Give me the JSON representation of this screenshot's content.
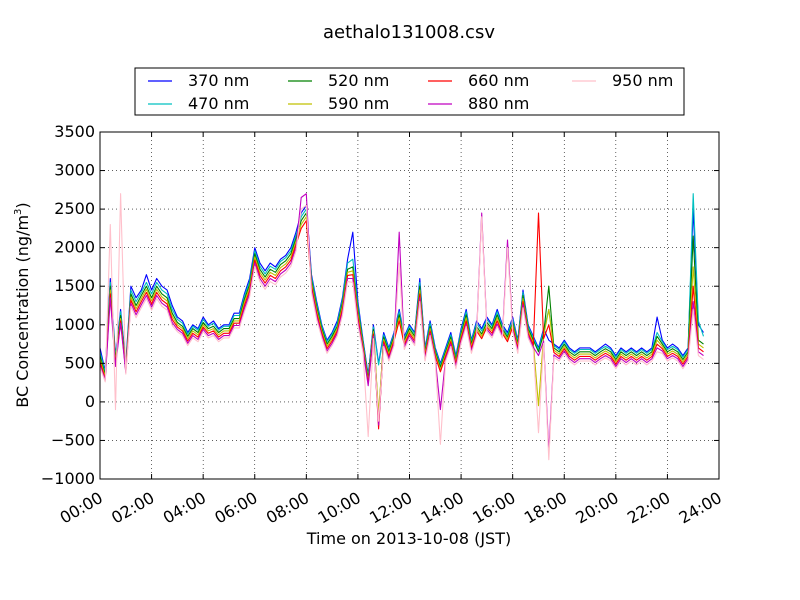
{
  "chart_data": {
    "type": "line",
    "title": "aethalo131008.csv",
    "xlabel": "Time on 2013-10-08 (JST)",
    "ylabel": "BC Concentration (ng/m",
    "ylabel_superscript": "3",
    "ylabel_suffix": ")",
    "xlim_hours": [
      0,
      24
    ],
    "ylim": [
      -1000,
      3500
    ],
    "xticks": [
      {
        "hour": 0,
        "label": "00:00"
      },
      {
        "hour": 2,
        "label": "02:00"
      },
      {
        "hour": 4,
        "label": "04:00"
      },
      {
        "hour": 6,
        "label": "06:00"
      },
      {
        "hour": 8,
        "label": "08:00"
      },
      {
        "hour": 10,
        "label": "10:00"
      },
      {
        "hour": 12,
        "label": "12:00"
      },
      {
        "hour": 14,
        "label": "14:00"
      },
      {
        "hour": 16,
        "label": "16:00"
      },
      {
        "hour": 18,
        "label": "18:00"
      },
      {
        "hour": 20,
        "label": "20:00"
      },
      {
        "hour": 22,
        "label": "22:00"
      },
      {
        "hour": 24,
        "label": "24:00"
      }
    ],
    "yticks": [
      {
        "value": -1000,
        "label": "−1000"
      },
      {
        "value": -500,
        "label": "−500"
      },
      {
        "value": 0,
        "label": "0"
      },
      {
        "value": 500,
        "label": "500"
      },
      {
        "value": 1000,
        "label": "1000"
      },
      {
        "value": 1500,
        "label": "1500"
      },
      {
        "value": 2000,
        "label": "2000"
      },
      {
        "value": 2500,
        "label": "2500"
      },
      {
        "value": 3000,
        "label": "3000"
      },
      {
        "value": 3500,
        "label": "3500"
      }
    ],
    "grid": true,
    "legend_position": "top",
    "x_hours": [
      0,
      0.2,
      0.4,
      0.6,
      0.8,
      1.0,
      1.2,
      1.4,
      1.6,
      1.8,
      2.0,
      2.2,
      2.4,
      2.6,
      2.8,
      3.0,
      3.2,
      3.4,
      3.6,
      3.8,
      4.0,
      4.2,
      4.4,
      4.6,
      4.8,
      5.0,
      5.2,
      5.4,
      5.6,
      5.8,
      6.0,
      6.2,
      6.4,
      6.6,
      6.8,
      7.0,
      7.2,
      7.4,
      7.6,
      7.8,
      8.0,
      8.2,
      8.4,
      8.6,
      8.8,
      9.0,
      9.2,
      9.4,
      9.6,
      9.8,
      10.0,
      10.2,
      10.4,
      10.6,
      10.8,
      11.0,
      11.2,
      11.4,
      11.6,
      11.8,
      12.0,
      12.2,
      12.4,
      12.6,
      12.8,
      13.0,
      13.2,
      13.4,
      13.6,
      13.8,
      14.0,
      14.2,
      14.4,
      14.6,
      14.8,
      15.0,
      15.2,
      15.4,
      15.6,
      15.8,
      16.0,
      16.2,
      16.4,
      16.6,
      16.8,
      17.0,
      17.2,
      17.4,
      17.6,
      17.8,
      18.0,
      18.2,
      18.4,
      18.6,
      18.8,
      19.0,
      19.2,
      19.4,
      19.6,
      19.8,
      20.0,
      20.2,
      20.4,
      20.6,
      20.8,
      21.0,
      21.2,
      21.4,
      21.6,
      21.8,
      22.0,
      22.2,
      22.4,
      22.6,
      22.8,
      23.0,
      23.2,
      23.4,
      23.6,
      23.8
    ],
    "series": [
      {
        "name": "370 nm",
        "color": "#0000ff",
        "values": [
          700,
          400,
          1600,
          600,
          1200,
          500,
          1500,
          1350,
          1450,
          1650,
          1450,
          1600,
          1500,
          1450,
          1250,
          1100,
          1050,
          900,
          1000,
          950,
          1100,
          1000,
          1050,
          950,
          1000,
          1000,
          1150,
          1150,
          1400,
          1600,
          2000,
          1800,
          1700,
          1800,
          1750,
          1850,
          1900,
          2000,
          2200,
          2450,
          2550,
          1650,
          1300,
          1000,
          800,
          900,
          1050,
          1350,
          1850,
          2200,
          1300,
          800,
          350,
          1000,
          500,
          900,
          700,
          900,
          1200,
          850,
          1000,
          900,
          1600,
          700,
          1050,
          700,
          500,
          700,
          900,
          600,
          950,
          1200,
          800,
          1050,
          950,
          1100,
          1000,
          1200,
          1000,
          900,
          1100,
          800,
          1450,
          1000,
          850,
          700,
          950,
          800,
          750,
          700,
          800,
          700,
          650,
          700,
          700,
          700,
          650,
          700,
          750,
          700,
          600,
          700,
          650,
          700,
          650,
          700,
          650,
          700,
          1100,
          800,
          700,
          750,
          700,
          600,
          700,
          2500,
          1000,
          900
        ]
      },
      {
        "name": "470 nm",
        "color": "#00c0c0",
        "values": [
          650,
          380,
          1550,
          580,
          1170,
          480,
          1450,
          1300,
          1420,
          1550,
          1400,
          1550,
          1450,
          1400,
          1200,
          1070,
          1020,
          880,
          980,
          930,
          1070,
          980,
          1020,
          930,
          980,
          980,
          1120,
          1120,
          1370,
          1560,
          1960,
          1760,
          1660,
          1760,
          1720,
          1820,
          1870,
          1960,
          2160,
          2400,
          2500,
          1620,
          1270,
          980,
          780,
          880,
          1020,
          1320,
          1800,
          1850,
          1250,
          780,
          330,
          970,
          480,
          870,
          680,
          880,
          1170,
          830,
          980,
          880,
          1550,
          680,
          1020,
          680,
          480,
          680,
          870,
          580,
          920,
          1170,
          780,
          1020,
          920,
          1070,
          980,
          1170,
          980,
          870,
          1070,
          780,
          1420,
          980,
          830,
          680,
          920,
          1200,
          730,
          680,
          780,
          680,
          630,
          680,
          680,
          680,
          630,
          680,
          720,
          680,
          580,
          680,
          630,
          680,
          630,
          680,
          630,
          680,
          900,
          780,
          680,
          720,
          680,
          580,
          680,
          2700,
          1050,
          850
        ]
      },
      {
        "name": "520 nm",
        "color": "#008000",
        "values": [
          600,
          350,
          1500,
          550,
          1120,
          450,
          1400,
          1250,
          1380,
          1500,
          1350,
          1500,
          1400,
          1350,
          1150,
          1030,
          980,
          850,
          950,
          900,
          1030,
          950,
          980,
          900,
          950,
          950,
          1080,
          1080,
          1330,
          1520,
          1920,
          1720,
          1620,
          1720,
          1680,
          1780,
          1830,
          1920,
          2120,
          2350,
          2450,
          1580,
          1230,
          950,
          750,
          850,
          980,
          1280,
          1720,
          1750,
          1200,
          750,
          300,
          940,
          -200,
          840,
          650,
          850,
          1130,
          800,
          950,
          850,
          1500,
          650,
          980,
          650,
          450,
          650,
          840,
          550,
          880,
          1130,
          750,
          980,
          880,
          1030,
          950,
          1130,
          950,
          840,
          1030,
          750,
          1380,
          950,
          800,
          650,
          880,
          1500,
          700,
          650,
          750,
          650,
          600,
          650,
          650,
          650,
          600,
          650,
          690,
          650,
          550,
          650,
          600,
          650,
          600,
          650,
          600,
          650,
          850,
          750,
          650,
          690,
          650,
          550,
          650,
          2150,
          800,
          750
        ]
      },
      {
        "name": "590 nm",
        "color": "#c0c000",
        "values": [
          560,
          320,
          1450,
          520,
          1080,
          420,
          1360,
          1210,
          1340,
          1460,
          1310,
          1460,
          1360,
          1310,
          1110,
          1000,
          950,
          820,
          920,
          870,
          1000,
          920,
          950,
          870,
          920,
          920,
          1050,
          1050,
          1290,
          1480,
          1880,
          1680,
          1580,
          1680,
          1640,
          1740,
          1790,
          1880,
          2080,
          2300,
          2400,
          1540,
          1190,
          920,
          720,
          820,
          950,
          1240,
          1680,
          1700,
          1150,
          720,
          270,
          910,
          -150,
          810,
          620,
          820,
          1090,
          770,
          920,
          820,
          1450,
          620,
          950,
          620,
          420,
          620,
          810,
          520,
          850,
          1090,
          720,
          950,
          850,
          1000,
          920,
          1090,
          920,
          810,
          1000,
          720,
          1340,
          920,
          770,
          -50,
          850,
          1200,
          670,
          620,
          720,
          620,
          570,
          620,
          620,
          620,
          570,
          620,
          660,
          620,
          520,
          620,
          570,
          620,
          570,
          620,
          570,
          620,
          800,
          720,
          620,
          660,
          620,
          520,
          620,
          1750,
          750,
          700
        ]
      },
      {
        "name": "660 nm",
        "color": "#ff0000",
        "values": [
          520,
          300,
          1400,
          490,
          1050,
          400,
          1320,
          1170,
          1300,
          1420,
          1270,
          1420,
          1320,
          1270,
          1070,
          970,
          920,
          790,
          890,
          840,
          970,
          890,
          920,
          840,
          890,
          890,
          1020,
          1020,
          1250,
          1440,
          1840,
          1640,
          1540,
          1640,
          1600,
          1700,
          1750,
          1840,
          2040,
          2250,
          2350,
          1500,
          1150,
          890,
          690,
          790,
          920,
          1200,
          1640,
          1650,
          1100,
          690,
          240,
          880,
          -350,
          780,
          590,
          790,
          1050,
          740,
          890,
          790,
          1400,
          590,
          920,
          590,
          390,
          590,
          780,
          490,
          820,
          1050,
          690,
          920,
          820,
          970,
          890,
          1050,
          890,
          780,
          970,
          690,
          1300,
          890,
          740,
          2450,
          820,
          1000,
          640,
          590,
          690,
          590,
          540,
          590,
          590,
          590,
          540,
          590,
          630,
          590,
          490,
          590,
          540,
          590,
          540,
          590,
          540,
          590,
          750,
          690,
          590,
          630,
          590,
          490,
          590,
          1500,
          700,
          650
        ]
      },
      {
        "name": "880 nm",
        "color": "#c000c0",
        "values": [
          480,
          280,
          1350,
          460,
          1020,
          380,
          1280,
          1130,
          1260,
          1380,
          1230,
          1380,
          1280,
          1230,
          1030,
          940,
          890,
          760,
          860,
          810,
          940,
          860,
          890,
          810,
          860,
          860,
          990,
          990,
          1210,
          1400,
          1800,
          1600,
          1500,
          1600,
          1560,
          1660,
          1710,
          1800,
          2000,
          2650,
          2700,
          1460,
          1110,
          860,
          660,
          760,
          890,
          1160,
          1600,
          1600,
          1050,
          660,
          210,
          850,
          -300,
          750,
          560,
          760,
          2200,
          710,
          860,
          760,
          1350,
          560,
          890,
          560,
          -100,
          560,
          750,
          460,
          790,
          1010,
          660,
          890,
          2450,
          940,
          860,
          1010,
          860,
          2100,
          940,
          660,
          1260,
          860,
          710,
          600,
          790,
          -650,
          610,
          560,
          660,
          560,
          510,
          560,
          560,
          560,
          510,
          560,
          600,
          560,
          460,
          560,
          510,
          560,
          510,
          560,
          510,
          560,
          700,
          660,
          560,
          600,
          560,
          460,
          560,
          1300,
          650,
          600
        ]
      },
      {
        "name": "950 nm",
        "color": "#ffc0cb",
        "values": [
          450,
          260,
          2300,
          -100,
          2700,
          360,
          1240,
          1090,
          1220,
          1340,
          1190,
          1340,
          1240,
          1190,
          990,
          910,
          860,
          730,
          830,
          780,
          910,
          830,
          860,
          780,
          830,
          830,
          960,
          960,
          1170,
          1360,
          1760,
          1560,
          1460,
          1560,
          1520,
          1620,
          1670,
          1760,
          1960,
          2500,
          2550,
          1420,
          1070,
          830,
          630,
          730,
          860,
          1120,
          1560,
          1550,
          1000,
          630,
          -450,
          820,
          -250,
          720,
          530,
          730,
          1800,
          680,
          830,
          730,
          1300,
          530,
          860,
          530,
          -550,
          530,
          720,
          430,
          760,
          980,
          630,
          860,
          2400,
          910,
          830,
          980,
          830,
          2000,
          910,
          630,
          1220,
          830,
          680,
          -400,
          760,
          -750,
          580,
          530,
          630,
          530,
          480,
          530,
          530,
          530,
          480,
          530,
          570,
          530,
          430,
          530,
          480,
          530,
          480,
          530,
          480,
          530,
          650,
          630,
          530,
          570,
          530,
          430,
          530,
          1200,
          600,
          550
        ]
      }
    ]
  }
}
